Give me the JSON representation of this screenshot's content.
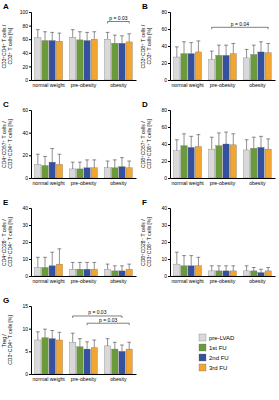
{
  "chart_data": [
    {
      "type": "bar",
      "title": "A",
      "ylabel": "CD3⁺CD4⁺ T cells / CD3⁺ T cells [%]",
      "categories": [
        "normal weight",
        "pre-obesity",
        "obesity"
      ],
      "series": [
        {
          "color": "#d9d9d9",
          "values": [
            62,
            63,
            60
          ],
          "errors": [
            12,
            11,
            10
          ]
        },
        {
          "color": "#6a9a3a",
          "values": [
            58,
            59,
            54
          ],
          "errors": [
            13,
            12,
            12
          ]
        },
        {
          "color": "#34509e",
          "values": [
            58,
            58,
            54
          ],
          "errors": [
            12,
            12,
            11
          ]
        },
        {
          "color": "#f2a530",
          "values": [
            57,
            60,
            56
          ],
          "errors": [
            12,
            11,
            12
          ]
        }
      ],
      "ylim": [
        0,
        100
      ],
      "yticks": [
        0,
        20,
        40,
        60,
        80,
        100
      ],
      "annotations": [
        {
          "text": "p = 0.03",
          "from": [
            2,
            0
          ],
          "to": [
            2,
            3
          ],
          "y": 86
        }
      ]
    },
    {
      "type": "bar",
      "title": "B",
      "ylabel": "CD3⁺CD8⁺ T cells / CD3⁺ T cells [%]",
      "categories": [
        "normal weight",
        "pre-obesity",
        "obesity"
      ],
      "series": [
        {
          "color": "#d9d9d9",
          "values": [
            27,
            24,
            26
          ],
          "errors": [
            12,
            10,
            10
          ]
        },
        {
          "color": "#6a9a3a",
          "values": [
            31,
            29,
            30
          ],
          "errors": [
            14,
            12,
            11
          ]
        },
        {
          "color": "#34509e",
          "values": [
            31,
            29,
            33
          ],
          "errors": [
            13,
            12,
            12
          ]
        },
        {
          "color": "#f2a530",
          "values": [
            33,
            31,
            32
          ],
          "errors": [
            13,
            12,
            11
          ]
        }
      ],
      "ylim": [
        0,
        80
      ],
      "yticks": [
        0,
        20,
        40,
        60,
        80
      ],
      "annotations": [
        {
          "text": "p = 0.04",
          "from": [
            1,
            0
          ],
          "to": [
            2,
            3
          ],
          "y": 62
        }
      ]
    },
    {
      "type": "bar",
      "title": "C",
      "ylabel": "CD4⁺CD57⁺ T cells / CD3⁺CD4⁺ T cells [%]",
      "categories": [
        "normal weight",
        "pre-obesity",
        "obesity"
      ],
      "series": [
        {
          "color": "#d9d9d9",
          "values": [
            12,
            8,
            9
          ],
          "errors": [
            9,
            6,
            6
          ]
        },
        {
          "color": "#6a9a3a",
          "values": [
            11,
            8,
            9
          ],
          "errors": [
            8,
            6,
            7
          ]
        },
        {
          "color": "#34509e",
          "values": [
            14,
            9,
            10
          ],
          "errors": [
            12,
            7,
            8
          ]
        },
        {
          "color": "#f2a530",
          "values": [
            12,
            9,
            9
          ],
          "errors": [
            9,
            7,
            6
          ]
        }
      ],
      "ylim": [
        0,
        60
      ],
      "yticks": [
        0,
        20,
        40,
        60
      ],
      "annotations": []
    },
    {
      "type": "bar",
      "title": "D",
      "ylabel": "CD8⁺CD57⁺ T cells / CD3⁺CD8⁺ T cells [%]",
      "categories": [
        "normal weight",
        "pre-obesity",
        "obesity"
      ],
      "series": [
        {
          "color": "#d9d9d9",
          "values": [
            32,
            34,
            33
          ],
          "errors": [
            13,
            14,
            12
          ]
        },
        {
          "color": "#6a9a3a",
          "values": [
            38,
            38,
            35
          ],
          "errors": [
            14,
            15,
            13
          ]
        },
        {
          "color": "#34509e",
          "values": [
            36,
            40,
            36
          ],
          "errors": [
            13,
            14,
            13
          ]
        },
        {
          "color": "#f2a530",
          "values": [
            37,
            39,
            34
          ],
          "errors": [
            14,
            13,
            12
          ]
        }
      ],
      "ylim": [
        0,
        80
      ],
      "yticks": [
        0,
        20,
        40,
        60,
        80
      ],
      "annotations": []
    },
    {
      "type": "bar",
      "title": "E",
      "ylabel": "CD4⁺CD28⁻ T cells / CD3⁺CD4⁺ T cells [%]",
      "categories": [
        "normal weight",
        "pre-obesity",
        "obesity"
      ],
      "series": [
        {
          "color": "#d9d9d9",
          "values": [
            5,
            4,
            4
          ],
          "errors": [
            6,
            4,
            3
          ]
        },
        {
          "color": "#6a9a3a",
          "values": [
            5,
            4,
            3
          ],
          "errors": [
            6,
            4,
            3
          ]
        },
        {
          "color": "#34509e",
          "values": [
            6,
            4,
            3
          ],
          "errors": [
            8,
            4,
            3
          ]
        },
        {
          "color": "#f2a530",
          "values": [
            7,
            4,
            4
          ],
          "errors": [
            9,
            4,
            3
          ]
        }
      ],
      "ylim": [
        0,
        40
      ],
      "yticks": [
        0,
        10,
        20,
        30,
        40
      ],
      "annotations": []
    },
    {
      "type": "bar",
      "title": "F",
      "ylabel": "CD8⁺CD28⁻ T cells / CD3⁺CD8⁺ T cells [%]",
      "categories": [
        "normal weight",
        "pre-obesity",
        "obesity"
      ],
      "series": [
        {
          "color": "#d9d9d9",
          "values": [
            7,
            3,
            3
          ],
          "errors": [
            7,
            3,
            3
          ]
        },
        {
          "color": "#6a9a3a",
          "values": [
            6,
            3,
            3
          ],
          "errors": [
            6,
            3,
            2
          ]
        },
        {
          "color": "#34509e",
          "values": [
            6,
            3,
            2
          ],
          "errors": [
            6,
            3,
            2
          ]
        },
        {
          "color": "#f2a530",
          "values": [
            6,
            3,
            3
          ],
          "errors": [
            5,
            3,
            2
          ]
        }
      ],
      "ylim": [
        0,
        40
      ],
      "yticks": [
        0,
        10,
        20,
        30,
        40
      ],
      "annotations": []
    },
    {
      "type": "bar",
      "title": "G",
      "ylabel": "Treg / CD3⁺CD4⁺ T cells [%]",
      "categories": [
        "normal weight",
        "pre-obesity",
        "obesity"
      ],
      "series": [
        {
          "name": "pre-LVAD",
          "color": "#d9d9d9",
          "values": [
            7.5,
            7,
            6.2
          ],
          "errors": [
            1.8,
            2,
            1.6
          ]
        },
        {
          "name": "1st FU",
          "color": "#6a9a3a",
          "values": [
            8,
            6,
            5.5
          ],
          "errors": [
            1.9,
            1.8,
            1.5
          ]
        },
        {
          "name": "2nd FU",
          "color": "#34509e",
          "values": [
            7.8,
            5.5,
            5
          ],
          "errors": [
            1.8,
            1.6,
            1.4
          ]
        },
        {
          "name": "3rd FU",
          "color": "#f2a530",
          "values": [
            7.5,
            5.8,
            5.5
          ],
          "errors": [
            1.7,
            1.7,
            1.5
          ]
        }
      ],
      "ylim": [
        0,
        15
      ],
      "yticks": [
        0,
        5,
        10,
        15
      ],
      "legend": "lower right",
      "annotations": [
        {
          "text": "p = 0.03",
          "from": [
            1,
            0
          ],
          "to": [
            2,
            2
          ],
          "y": 12.8
        },
        {
          "text": "p = 0.03",
          "from": [
            1,
            2
          ],
          "to": [
            2,
            3
          ],
          "y": 11.2
        }
      ]
    }
  ]
}
